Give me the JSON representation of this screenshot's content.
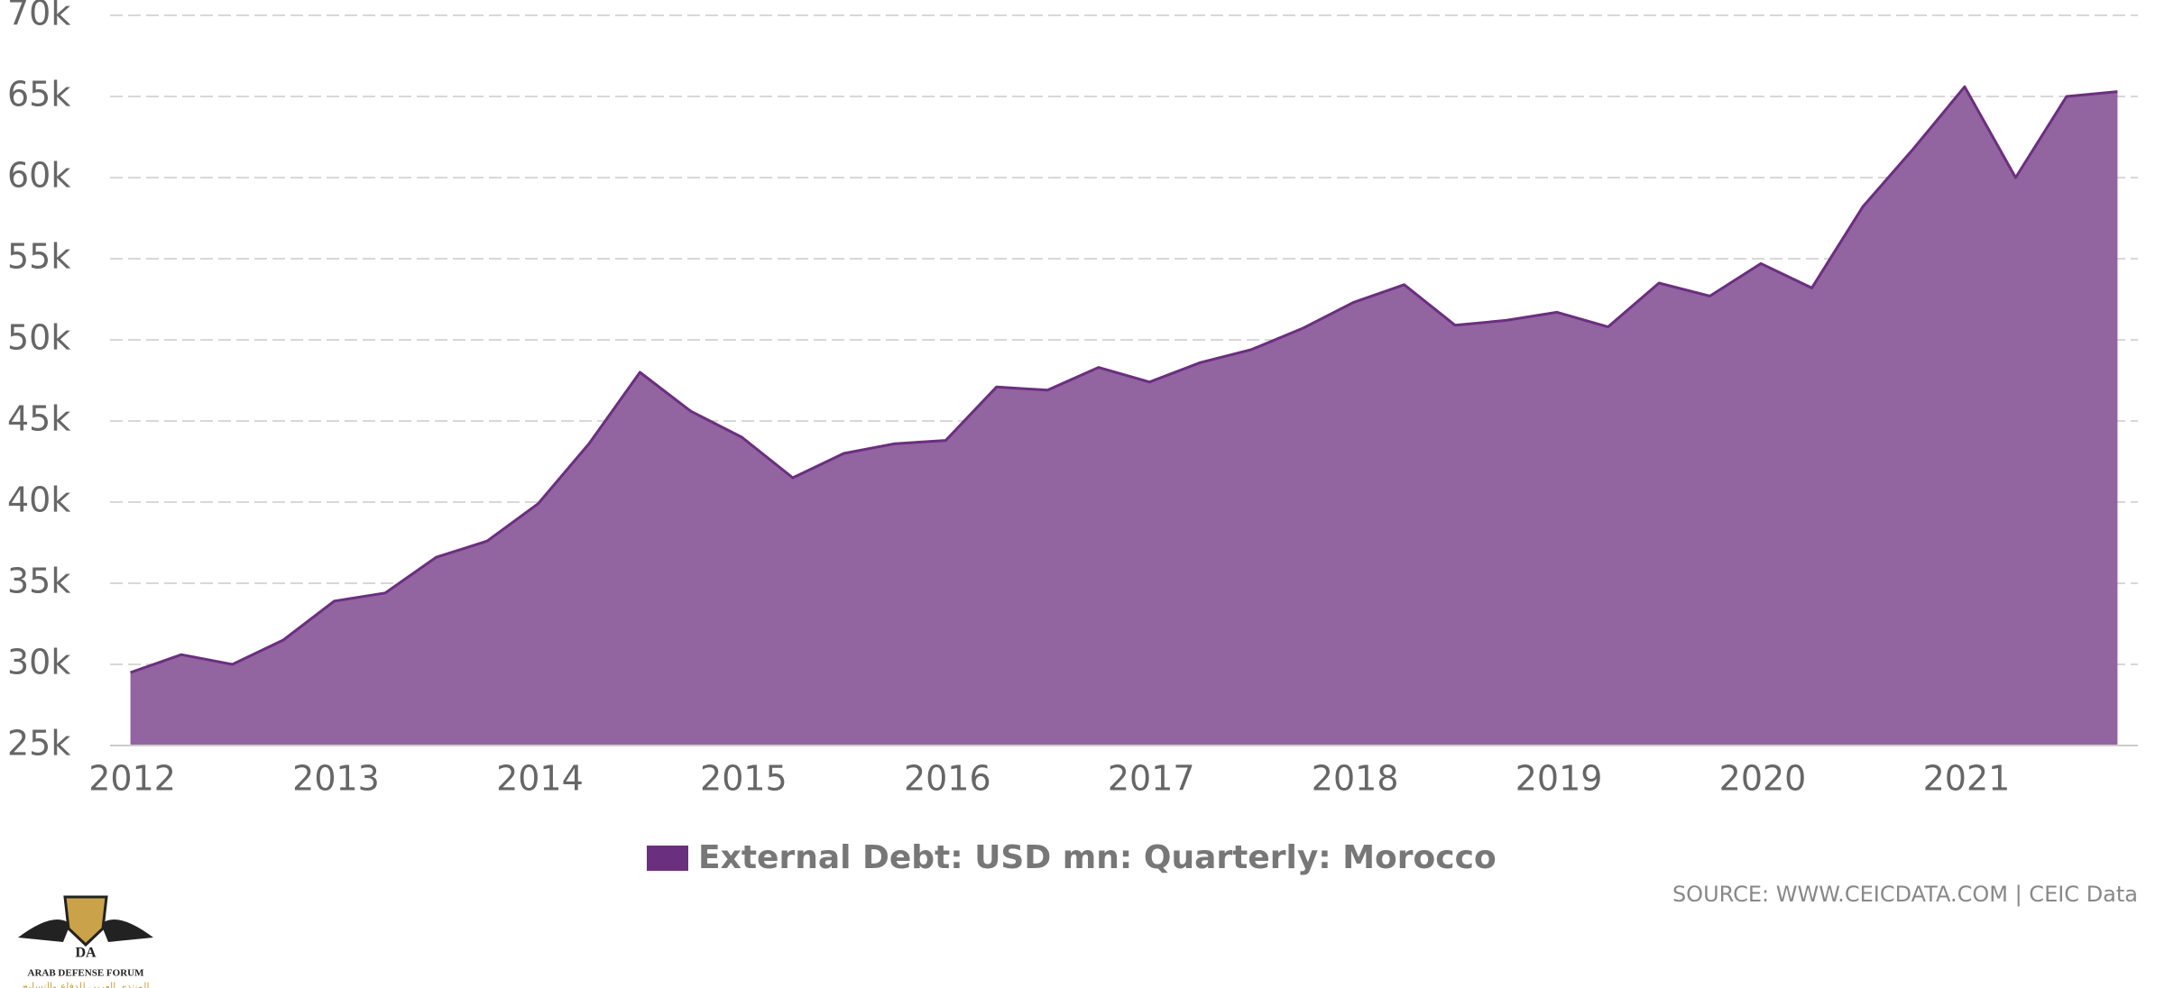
{
  "chart_data": {
    "type": "area",
    "series": [
      {
        "name": "External Debt: USD mn: Quarterly: Morocco",
        "color": "#6b2f7f",
        "fill": "#9264a0",
        "values": [
          29500,
          30600,
          30000,
          31500,
          33900,
          34400,
          36600,
          37600,
          39900,
          43600,
          48000,
          45600,
          44000,
          41500,
          43000,
          43600,
          43800,
          47100,
          46900,
          48300,
          47400,
          48600,
          49400,
          50700,
          52300,
          53400,
          50900,
          51200,
          51700,
          50800,
          53500,
          52700,
          54700,
          53200,
          58200,
          61800,
          65600,
          60000,
          65000,
          65300
        ]
      }
    ],
    "x": [
      2012,
      2012.25,
      2012.5,
      2012.75,
      2013,
      2013.25,
      2013.5,
      2013.75,
      2014,
      2014.25,
      2014.5,
      2014.75,
      2015,
      2015.25,
      2015.5,
      2015.75,
      2016,
      2016.25,
      2016.5,
      2016.75,
      2017,
      2017.25,
      2017.5,
      2017.75,
      2018,
      2018.25,
      2018.5,
      2018.75,
      2019,
      2019.25,
      2019.5,
      2019.75,
      2020,
      2020.25,
      2020.5,
      2020.75,
      2021,
      2021.25,
      2021.5,
      2021.75
    ],
    "xlim": [
      2011.9,
      2021.85
    ],
    "xticks": [
      2012,
      2013,
      2014,
      2015,
      2016,
      2017,
      2018,
      2019,
      2020,
      2021
    ],
    "ylim": [
      25000,
      70000
    ],
    "yticks": [
      {
        "value": 25000,
        "label": "25k"
      },
      {
        "value": 30000,
        "label": "30k"
      },
      {
        "value": 35000,
        "label": "35k"
      },
      {
        "value": 40000,
        "label": "40k"
      },
      {
        "value": 45000,
        "label": "45k"
      },
      {
        "value": 50000,
        "label": "50k"
      },
      {
        "value": 55000,
        "label": "55k"
      },
      {
        "value": 60000,
        "label": "60k"
      },
      {
        "value": 65000,
        "label": "65k"
      },
      {
        "value": 70000,
        "label": "70k"
      }
    ],
    "grid": true,
    "legend": "bottom",
    "source": "SOURCE: WWW.CEICDATA.COM | CEIC Data"
  },
  "watermark": {
    "initials": "DA",
    "name": "ARAB DEFENSE FORUM",
    "arabic": "المنتدى العربي للدفاع والتسليح"
  }
}
